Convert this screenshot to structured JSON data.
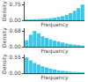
{
  "chart_data": [
    {
      "type": "bar",
      "categories": [
        null,
        null,
        null,
        null,
        null,
        null,
        null,
        null,
        null,
        null,
        null,
        null,
        null,
        null,
        null
      ],
      "values": [
        0.04,
        0.04,
        0.05,
        0.06,
        0.07,
        0.08,
        0.1,
        0.12,
        0.16,
        0.2,
        0.26,
        0.34,
        0.45,
        0.58,
        0.75
      ],
      "color": "#3ec8e8",
      "x_label": "Frequency",
      "y_label": "Density",
      "ylim": [
        0,
        0.885
      ],
      "yticks": [
        {
          "value": 0,
          "label": "0.00"
        },
        0.75
      ],
      "grid": false,
      "tick_labels": "y"
    },
    {
      "type": "bar",
      "categories": [
        null,
        null,
        null,
        null,
        null,
        null,
        null,
        null,
        null,
        null,
        null,
        null,
        null,
        null,
        null
      ],
      "values": [
        0.28,
        0.52,
        0.68,
        0.58,
        0.45,
        0.38,
        0.32,
        0.26,
        0.22,
        0.18,
        0.14,
        0.11,
        0.09,
        0.07,
        0.05
      ],
      "color": "#3ec8e8",
      "x_label": "Frequency",
      "y_label": "Density",
      "ylim": [
        0,
        0.8024
      ],
      "yticks": [
        {
          "value": 0,
          "label": "0.00"
        },
        0.68
      ],
      "grid": false,
      "tick_labels": "y"
    },
    {
      "type": "bar",
      "categories": [
        null,
        null,
        null,
        null,
        null,
        null,
        null,
        null,
        null,
        null,
        null,
        null,
        null,
        null,
        null
      ],
      "values": [
        0.55,
        0.45,
        0.36,
        0.3,
        0.24,
        0.2,
        0.16,
        0.13,
        0.1,
        0.08,
        0.07,
        0.05,
        0.04,
        0.04,
        0.03
      ],
      "color": "#3ec8e8",
      "x_label": "Frequency",
      "y_label": "Density",
      "ylim": [
        0,
        0.649
      ],
      "yticks": [
        {
          "value": 0,
          "label": "0.00"
        },
        0.55
      ],
      "grid": false,
      "tick_labels": "y"
    }
  ]
}
